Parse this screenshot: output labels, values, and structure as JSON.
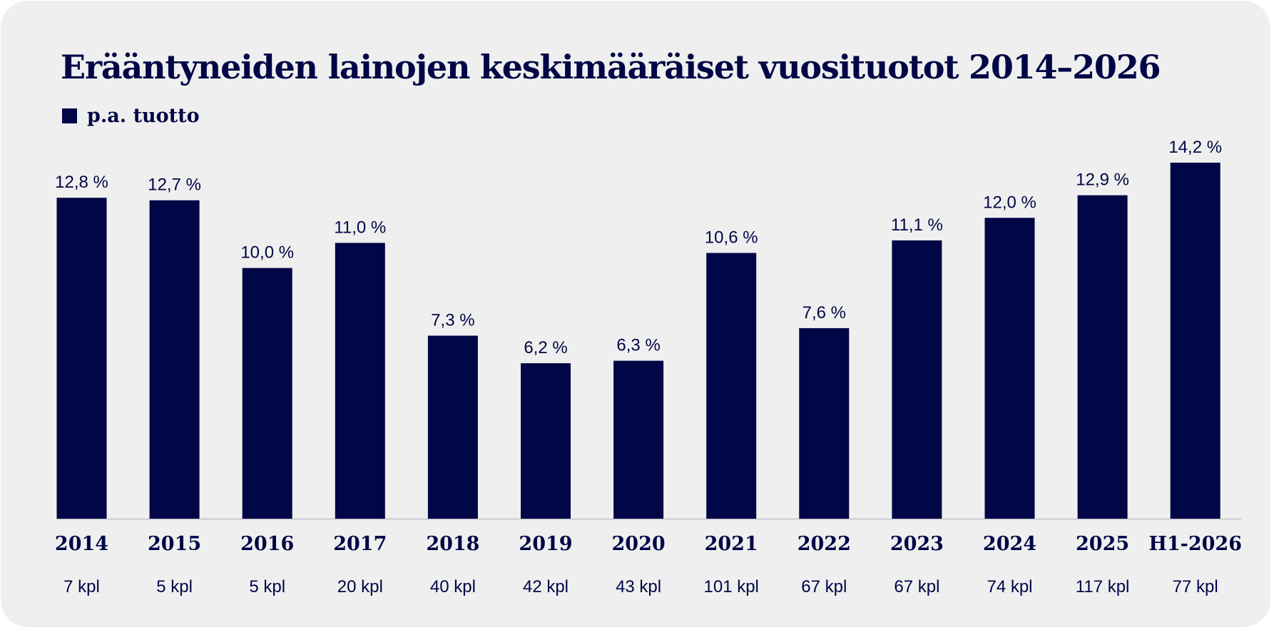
{
  "chart_data": {
    "type": "bar",
    "title": "Erääntyneiden lainojen keskimääräiset vuosituotot 2014–2026",
    "legend": [
      {
        "name": "p.a. tuotto",
        "color": "#000646"
      }
    ],
    "legend_position": "top-left",
    "categories": [
      "2014",
      "2015",
      "2016",
      "2017",
      "2018",
      "2019",
      "2020",
      "2021",
      "2022",
      "2023",
      "2024",
      "2025",
      "H1-2026"
    ],
    "series": [
      {
        "name": "p.a. tuotto",
        "values": [
          12.8,
          12.7,
          10.0,
          11.0,
          7.3,
          6.2,
          6.3,
          10.6,
          7.6,
          11.1,
          12.0,
          12.9,
          14.2
        ]
      }
    ],
    "value_labels": [
      "12,8 %",
      "12,7 %",
      "10,0 %",
      "11,0 %",
      "7,3 %",
      "6,2 %",
      "6,3 %",
      "10,6 %",
      "7,6 %",
      "11,1 %",
      "12,0 %",
      "12,9 %",
      "14,2 %"
    ],
    "counts": [
      "7 kpl",
      "5 kpl",
      "5 kpl",
      "20 kpl",
      "40 kpl",
      "42 kpl",
      "43 kpl",
      "101 kpl",
      "67 kpl",
      "67 kpl",
      "74 kpl",
      "117 kpl",
      "77 kpl"
    ],
    "ylim": [
      0,
      14.2
    ],
    "xlabel": "",
    "ylabel": "",
    "grid": false,
    "colors": {
      "bar": "#000646",
      "text": "#000646",
      "background": "#efefef",
      "baseline": "#c9c9d1"
    }
  }
}
